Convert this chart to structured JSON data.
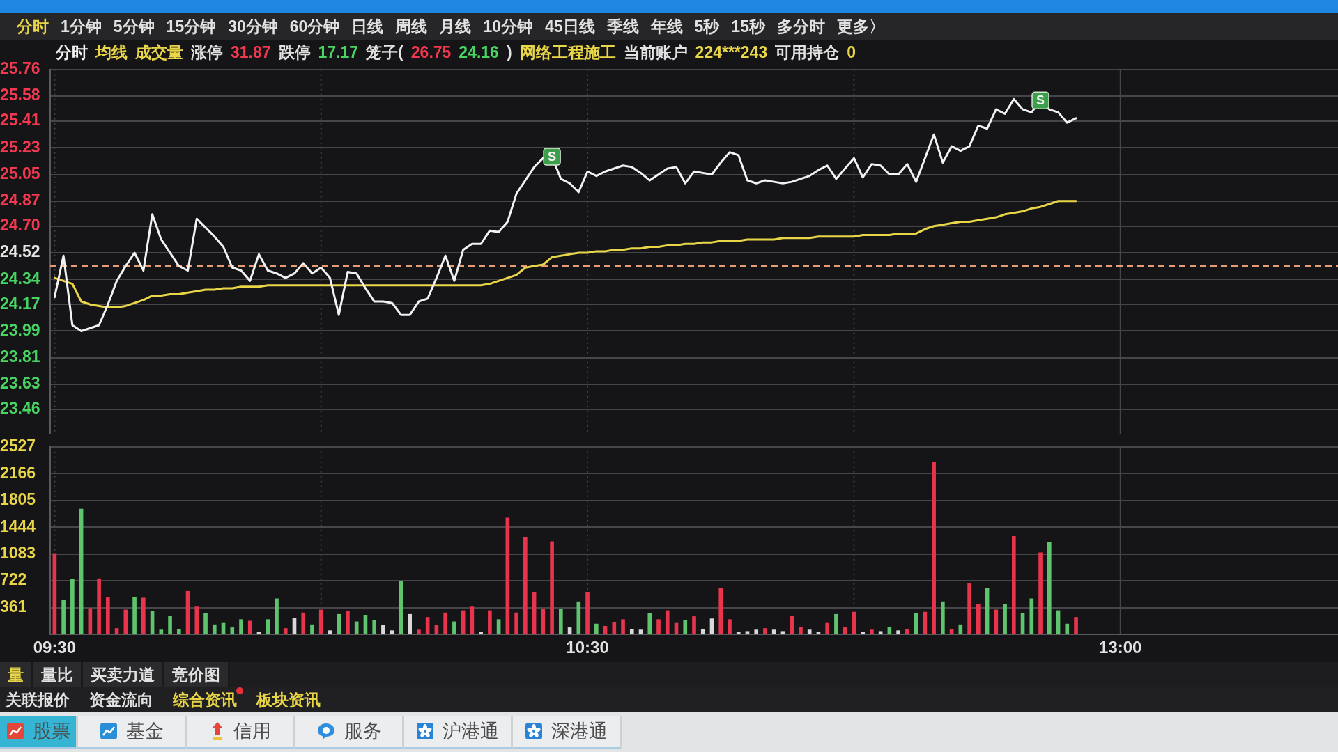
{
  "chart_data": [
    {
      "type": "line",
      "categories": [
        null,
        null,
        null,
        null,
        null,
        null,
        null,
        null,
        null,
        null,
        null,
        null,
        null,
        null,
        null,
        null,
        null,
        null,
        null,
        null,
        null,
        null,
        null,
        null,
        null,
        null,
        null,
        null,
        null,
        null,
        null,
        null,
        null,
        null,
        null,
        null,
        null,
        null,
        null,
        null,
        null,
        null,
        null,
        null,
        null,
        null,
        null,
        null,
        null,
        null,
        null,
        null,
        null,
        null,
        null,
        null,
        null,
        null,
        null,
        null,
        null,
        null,
        null,
        null,
        null,
        null,
        null,
        null,
        null,
        null,
        null,
        null,
        null,
        null,
        null,
        null,
        null,
        null,
        null,
        null,
        null,
        null,
        null,
        null,
        null,
        null,
        null,
        null,
        null,
        null,
        null,
        null,
        null,
        null,
        null,
        null,
        null,
        null,
        null,
        null,
        null,
        null,
        null,
        null,
        null,
        null,
        null,
        null,
        null,
        null,
        null,
        null,
        null,
        null,
        null,
        null,
        null,
        null,
        null,
        null,
        null,
        null,
        null,
        null,
        null,
        null,
        null,
        null,
        null,
        null,
        null,
        null,
        null,
        null,
        null,
        null,
        null,
        null,
        null,
        null,
        null,
        null,
        null,
        null,
        null
      ],
      "series": [
        {
          "name": "分时",
          "color": "#f2f2f2",
          "values": [
            24.22,
            24.5,
            24.03,
            23.99,
            24.01,
            24.03,
            24.17,
            24.33,
            24.43,
            24.52,
            24.4,
            24.78,
            24.61,
            24.52,
            24.43,
            24.4,
            24.75,
            24.69,
            24.63,
            24.56,
            24.42,
            24.4,
            24.33,
            24.51,
            24.4,
            24.38,
            24.35,
            24.38,
            24.45,
            24.38,
            24.42,
            24.35,
            24.1,
            24.39,
            24.38,
            24.28,
            24.19,
            24.19,
            24.18,
            24.1,
            24.1,
            24.19,
            24.21,
            24.35,
            24.5,
            24.33,
            24.54,
            24.58,
            24.58,
            24.67,
            24.66,
            24.73,
            24.92,
            25.01,
            25.1,
            25.16,
            25.17,
            25.02,
            24.99,
            24.93,
            25.07,
            25.04,
            25.07,
            25.09,
            25.11,
            25.1,
            25.06,
            25.01,
            25.05,
            25.09,
            25.1,
            24.99,
            25.07,
            25.06,
            25.05,
            25.13,
            25.2,
            25.18,
            25.01,
            24.99,
            25.01,
            25.0,
            24.99,
            25.0,
            25.02,
            25.04,
            25.08,
            25.11,
            25.02,
            25.09,
            25.16,
            25.03,
            25.12,
            25.11,
            25.05,
            25.05,
            25.12,
            25.0,
            25.16,
            25.32,
            25.13,
            25.24,
            25.21,
            25.24,
            25.38,
            25.36,
            25.49,
            25.46,
            25.56,
            25.49,
            25.47,
            25.55,
            25.49,
            25.47,
            25.4,
            25.43,
            null,
            null,
            null,
            null,
            null,
            null,
            null,
            null,
            null,
            null,
            null,
            null,
            null,
            null,
            null,
            null,
            null,
            null,
            null,
            null,
            null,
            null,
            null,
            null,
            null,
            null,
            null,
            null,
            null
          ]
        },
        {
          "name": "均线",
          "color": "#e9d648",
          "values": [
            24.35,
            24.33,
            24.31,
            24.19,
            24.17,
            24.16,
            24.15,
            24.15,
            24.16,
            24.18,
            24.2,
            24.23,
            24.23,
            24.24,
            24.24,
            24.25,
            24.26,
            24.27,
            24.27,
            24.28,
            24.28,
            24.29,
            24.29,
            24.29,
            24.3,
            24.3,
            24.3,
            24.3,
            24.3,
            24.3,
            24.3,
            24.3,
            24.3,
            24.3,
            24.3,
            24.3,
            24.3,
            24.3,
            24.3,
            24.3,
            24.3,
            24.3,
            24.3,
            24.3,
            24.3,
            24.3,
            24.3,
            24.3,
            24.3,
            24.31,
            24.33,
            24.35,
            24.37,
            24.42,
            24.43,
            24.44,
            24.49,
            24.5,
            24.51,
            24.52,
            24.52,
            24.53,
            24.53,
            24.54,
            24.54,
            24.55,
            24.55,
            24.56,
            24.56,
            24.57,
            24.57,
            24.58,
            24.58,
            24.59,
            24.59,
            24.6,
            24.6,
            24.6,
            24.61,
            24.61,
            24.61,
            24.61,
            24.62,
            24.62,
            24.62,
            24.62,
            24.63,
            24.63,
            24.63,
            24.63,
            24.63,
            24.64,
            24.64,
            24.64,
            24.64,
            24.65,
            24.65,
            24.65,
            24.68,
            24.7,
            24.71,
            24.72,
            24.73,
            24.73,
            24.74,
            24.75,
            24.76,
            24.78,
            24.79,
            24.8,
            24.82,
            24.83,
            24.85,
            24.87,
            24.87,
            24.87,
            null,
            null,
            null,
            null,
            null,
            null,
            null,
            null,
            null,
            null,
            null,
            null,
            null,
            null,
            null,
            null,
            null,
            null,
            null,
            null,
            null,
            null,
            null,
            null,
            null,
            null,
            null,
            null,
            null
          ]
        }
      ],
      "ylim": [
        23.28,
        25.76
      ],
      "yticks": [
        23.46,
        23.63,
        23.81,
        23.99,
        24.17,
        24.34,
        24.52,
        {
          "value": 24.7,
          "label": "24.70"
        },
        24.87,
        25.05,
        25.23,
        25.41,
        25.58,
        25.76
      ],
      "ref_lines": [
        {
          "axis": "y",
          "value": 24.43,
          "color": "#e89a72",
          "line_style": "dashed"
        }
      ],
      "grid": true,
      "legend": "top left",
      "tick_labels": "y",
      "annotations": [
        "分时",
        "1分钟",
        "5分钟",
        "15分钟",
        "30分钟",
        "60分钟",
        "日线",
        "周线",
        "月线",
        "10分钟",
        "45日线",
        "季线",
        "年线",
        "5秒",
        "15秒",
        "多分时",
        "更多〉",
        "成交量",
        "涨停",
        "31.87",
        "跌停",
        "17.17",
        "笼子(",
        "26.75",
        "24.16",
        ")",
        "网络工程施工",
        "当前账户",
        "224***243",
        "可用持仓",
        "0",
        {
          "text": "S",
          "y": 25.17
        },
        {
          "text": "S",
          "y": 25.55
        }
      ]
    },
    {
      "type": "bar",
      "categories": [
        "09:30",
        null,
        null,
        null,
        null,
        null,
        null,
        null,
        null,
        null,
        null,
        null,
        null,
        null,
        null,
        null,
        null,
        null,
        null,
        null,
        null,
        null,
        null,
        null,
        null,
        null,
        null,
        null,
        null,
        null,
        null,
        null,
        null,
        null,
        null,
        null,
        null,
        null,
        null,
        null,
        null,
        null,
        null,
        null,
        null,
        null,
        null,
        null,
        null,
        null,
        null,
        null,
        null,
        null,
        null,
        null,
        null,
        null,
        null,
        null,
        "10:30",
        null,
        null,
        null,
        null,
        null,
        null,
        null,
        null,
        null,
        null,
        null,
        null,
        null,
        null,
        null,
        null,
        null,
        null,
        null,
        null,
        null,
        null,
        null,
        null,
        null,
        null,
        null,
        null,
        null,
        null,
        null,
        null,
        null,
        null,
        null,
        null,
        null,
        null,
        null,
        null,
        null,
        null,
        null,
        null,
        null,
        null,
        null,
        null,
        null,
        null,
        null,
        null,
        null,
        null,
        null,
        null,
        null,
        null,
        null,
        "13:00",
        null,
        null,
        null,
        null,
        null,
        null,
        null,
        null,
        null,
        null,
        null,
        null,
        null,
        null,
        null,
        null,
        null,
        null,
        null,
        null,
        null,
        null,
        null,
        null
      ],
      "values": [
        1090,
        460,
        740,
        1690,
        350,
        750,
        500,
        80,
        330,
        500,
        490,
        310,
        60,
        250,
        70,
        580,
        370,
        280,
        130,
        150,
        90,
        200,
        180,
        30,
        200,
        480,
        80,
        220,
        290,
        130,
        330,
        50,
        270,
        310,
        170,
        260,
        190,
        120,
        50,
        720,
        270,
        60,
        230,
        120,
        290,
        170,
        320,
        370,
        30,
        320,
        200,
        1570,
        290,
        1310,
        570,
        340,
        1250,
        340,
        90,
        440,
        570,
        140,
        110,
        160,
        200,
        70,
        60,
        280,
        200,
        320,
        150,
        190,
        240,
        70,
        210,
        620,
        200,
        30,
        40,
        60,
        80,
        60,
        40,
        250,
        100,
        60,
        30,
        150,
        270,
        100,
        300,
        30,
        60,
        40,
        100,
        50,
        70,
        280,
        300,
        2320,
        440,
        70,
        130,
        690,
        410,
        620,
        330,
        410,
        1320,
        280,
        480,
        1100,
        1240,
        320,
        140,
        230,
        null,
        null,
        null,
        null,
        null,
        null,
        null,
        null,
        null,
        null,
        null,
        null,
        null,
        null,
        null,
        null,
        null,
        null,
        null,
        null,
        null,
        null,
        null,
        null,
        null,
        null,
        null,
        null,
        null
      ],
      "colors": [
        "#e8344c",
        "#5ec46e",
        "#5ec46e",
        "#5ec46e",
        "#e8344c",
        "#e8344c",
        "#e8344c",
        "#e8344c",
        "#e8344c",
        "#5ec46e",
        "#e8344c",
        "#5ec46e",
        "#5ec46e",
        "#5ec46e",
        "#5ec46e",
        "#e8344c",
        "#e8344c",
        "#5ec46e",
        "#5ec46e",
        "#5ec46e",
        "#5ec46e",
        "#5ec46e",
        "#e8344c",
        "#d8d8d8",
        "#5ec46e",
        "#5ec46e",
        "#e8344c",
        "#d8d8d8",
        "#e8344c",
        "#5ec46e",
        "#e8344c",
        "#d8d8d8",
        "#5ec46e",
        "#e8344c",
        "#5ec46e",
        "#5ec46e",
        "#5ec46e",
        "#d8d8d8",
        "#d8d8d8",
        "#5ec46e",
        "#d8d8d8",
        "#e8344c",
        "#e8344c",
        "#e8344c",
        "#e8344c",
        "#5ec46e",
        "#e8344c",
        "#e8344c",
        "#d8d8d8",
        "#e8344c",
        "#5ec46e",
        "#e8344c",
        "#e8344c",
        "#e8344c",
        "#e8344c",
        "#e8344c",
        "#e8344c",
        "#5ec46e",
        "#d8d8d8",
        "#5ec46e",
        "#e8344c",
        "#5ec46e",
        "#e8344c",
        "#e8344c",
        "#e8344c",
        "#d8d8d8",
        "#d8d8d8",
        "#5ec46e",
        "#e8344c",
        "#e8344c",
        "#e8344c",
        "#5ec46e",
        "#e8344c",
        "#d8d8d8",
        "#d8d8d8",
        "#e8344c",
        "#e8344c",
        "#d8d8d8",
        "#d8d8d8",
        "#d8d8d8",
        "#e8344c",
        "#d8d8d8",
        "#d8d8d8",
        "#e8344c",
        "#e8344c",
        "#d8d8d8",
        "#d8d8d8",
        "#e8344c",
        "#5ec46e",
        "#e8344c",
        "#e8344c",
        "#d8d8d8",
        "#e8344c",
        "#d8d8d8",
        "#5ec46e",
        "#d8d8d8",
        "#e8344c",
        "#5ec46e",
        "#e8344c",
        "#e8344c",
        "#5ec46e",
        "#e8344c",
        "#5ec46e",
        "#e8344c",
        "#e8344c",
        "#5ec46e",
        "#e8344c",
        "#5ec46e",
        "#e8344c",
        "#5ec46e",
        "#5ec46e",
        "#e8344c",
        "#5ec46e",
        "#5ec46e",
        "#5ec46e",
        "#e8344c",
        null,
        null,
        null,
        null,
        null,
        null,
        null,
        null,
        null,
        null,
        null,
        null,
        null,
        null,
        null,
        null,
        null,
        null,
        null,
        null,
        null,
        null,
        null,
        null,
        null,
        null,
        null,
        null,
        null
      ],
      "ylim": [
        0,
        2527
      ],
      "yticks": [
        361,
        722,
        1083,
        1444,
        1805,
        2166,
        2527
      ],
      "grid": true,
      "annotations": [
        "量",
        "量比",
        "买卖力道",
        "竞价图",
        "关联报价",
        "资金流向",
        "综合资讯",
        "板块资讯",
        "股票",
        "基金",
        "信用",
        "服务",
        "沪港通",
        "深港通"
      ]
    }
  ]
}
